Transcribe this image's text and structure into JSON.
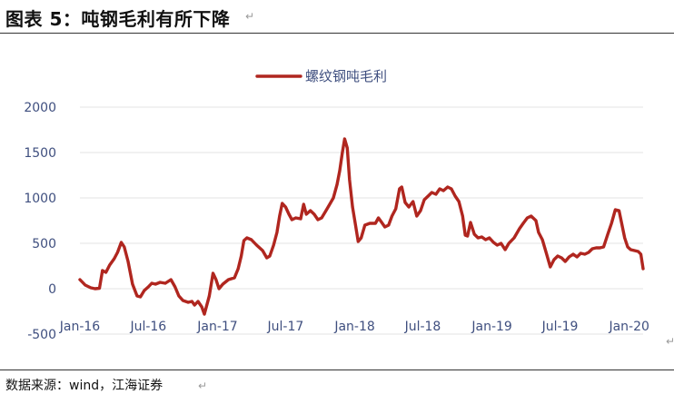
{
  "figure_title": "图表 5：吨钢毛利有所下降",
  "source_note": "数据来源：wind，江海证券",
  "colors": {
    "series": "#b0261f",
    "axis_text": "#3f4f7f",
    "grid": "#e3e3e3",
    "title_text": "#111111"
  },
  "chart_data": {
    "type": "line",
    "title": "",
    "xlabel": "",
    "ylabel": "",
    "legend_position": "top-center",
    "grid": true,
    "ylim": [
      -500,
      2000
    ],
    "yticks": [
      -500,
      0,
      500,
      1000,
      1500,
      2000
    ],
    "xlim": [
      "2016-01-01",
      "2020-02-07"
    ],
    "xticks": [
      {
        "date": "2016-01-01",
        "label": "Jan-16"
      },
      {
        "date": "2016-07-01",
        "label": "Jul-16"
      },
      {
        "date": "2017-01-01",
        "label": "Jan-17"
      },
      {
        "date": "2017-07-01",
        "label": "Jul-17"
      },
      {
        "date": "2018-01-01",
        "label": "Jan-18"
      },
      {
        "date": "2018-07-01",
        "label": "Jul-18"
      },
      {
        "date": "2019-01-01",
        "label": "Jan-19"
      },
      {
        "date": "2019-07-01",
        "label": "Jul-19"
      },
      {
        "date": "2020-01-01",
        "label": "Jan-20"
      }
    ],
    "series": [
      {
        "name": "螺纹钢吨毛利",
        "points": [
          [
            "2016-01-01",
            100
          ],
          [
            "2016-01-15",
            40
          ],
          [
            "2016-01-30",
            10
          ],
          [
            "2016-02-10",
            0
          ],
          [
            "2016-02-22",
            5
          ],
          [
            "2016-03-01",
            200
          ],
          [
            "2016-03-10",
            180
          ],
          [
            "2016-03-20",
            260
          ],
          [
            "2016-04-01",
            330
          ],
          [
            "2016-04-10",
            400
          ],
          [
            "2016-04-20",
            510
          ],
          [
            "2016-04-28",
            460
          ],
          [
            "2016-05-08",
            300
          ],
          [
            "2016-05-20",
            50
          ],
          [
            "2016-06-01",
            -80
          ],
          [
            "2016-06-10",
            -90
          ],
          [
            "2016-06-20",
            -20
          ],
          [
            "2016-07-01",
            20
          ],
          [
            "2016-07-10",
            60
          ],
          [
            "2016-07-20",
            50
          ],
          [
            "2016-08-01",
            70
          ],
          [
            "2016-08-15",
            60
          ],
          [
            "2016-08-30",
            100
          ],
          [
            "2016-09-10",
            20
          ],
          [
            "2016-09-20",
            -80
          ],
          [
            "2016-10-01",
            -130
          ],
          [
            "2016-10-15",
            -150
          ],
          [
            "2016-10-25",
            -140
          ],
          [
            "2016-11-01",
            -180
          ],
          [
            "2016-11-10",
            -140
          ],
          [
            "2016-11-20",
            -200
          ],
          [
            "2016-11-27",
            -280
          ],
          [
            "2016-12-10",
            -80
          ],
          [
            "2016-12-20",
            170
          ],
          [
            "2016-12-28",
            100
          ],
          [
            "2017-01-05",
            0
          ],
          [
            "2017-01-15",
            50
          ],
          [
            "2017-01-30",
            100
          ],
          [
            "2017-02-15",
            120
          ],
          [
            "2017-02-25",
            220
          ],
          [
            "2017-03-05",
            360
          ],
          [
            "2017-03-12",
            530
          ],
          [
            "2017-03-20",
            560
          ],
          [
            "2017-04-01",
            540
          ],
          [
            "2017-04-15",
            480
          ],
          [
            "2017-05-01",
            420
          ],
          [
            "2017-05-12",
            340
          ],
          [
            "2017-05-20",
            360
          ],
          [
            "2017-05-30",
            480
          ],
          [
            "2017-06-08",
            620
          ],
          [
            "2017-06-15",
            800
          ],
          [
            "2017-06-22",
            940
          ],
          [
            "2017-07-01",
            900
          ],
          [
            "2017-07-10",
            820
          ],
          [
            "2017-07-18",
            760
          ],
          [
            "2017-07-28",
            780
          ],
          [
            "2017-08-10",
            770
          ],
          [
            "2017-08-18",
            930
          ],
          [
            "2017-08-25",
            820
          ],
          [
            "2017-09-05",
            860
          ],
          [
            "2017-09-15",
            820
          ],
          [
            "2017-09-25",
            760
          ],
          [
            "2017-10-05",
            780
          ],
          [
            "2017-10-15",
            850
          ],
          [
            "2017-10-25",
            920
          ],
          [
            "2017-11-05",
            1000
          ],
          [
            "2017-11-15",
            1150
          ],
          [
            "2017-11-22",
            1300
          ],
          [
            "2017-11-29",
            1500
          ],
          [
            "2017-12-05",
            1650
          ],
          [
            "2017-12-12",
            1550
          ],
          [
            "2017-12-18",
            1200
          ],
          [
            "2017-12-26",
            900
          ],
          [
            "2018-01-03",
            700
          ],
          [
            "2018-01-10",
            520
          ],
          [
            "2018-01-18",
            560
          ],
          [
            "2018-01-28",
            700
          ],
          [
            "2018-02-10",
            720
          ],
          [
            "2018-02-25",
            720
          ],
          [
            "2018-03-05",
            780
          ],
          [
            "2018-03-12",
            740
          ],
          [
            "2018-03-22",
            680
          ],
          [
            "2018-04-01",
            700
          ],
          [
            "2018-04-10",
            800
          ],
          [
            "2018-04-20",
            880
          ],
          [
            "2018-04-30",
            1100
          ],
          [
            "2018-05-06",
            1120
          ],
          [
            "2018-05-15",
            950
          ],
          [
            "2018-05-25",
            900
          ],
          [
            "2018-06-05",
            960
          ],
          [
            "2018-06-15",
            800
          ],
          [
            "2018-06-25",
            860
          ],
          [
            "2018-07-05",
            980
          ],
          [
            "2018-07-15",
            1020
          ],
          [
            "2018-07-25",
            1060
          ],
          [
            "2018-08-05",
            1040
          ],
          [
            "2018-08-15",
            1100
          ],
          [
            "2018-08-25",
            1080
          ],
          [
            "2018-09-05",
            1120
          ],
          [
            "2018-09-15",
            1100
          ],
          [
            "2018-09-25",
            1020
          ],
          [
            "2018-10-05",
            960
          ],
          [
            "2018-10-15",
            800
          ],
          [
            "2018-10-22",
            590
          ],
          [
            "2018-10-28",
            580
          ],
          [
            "2018-11-05",
            730
          ],
          [
            "2018-11-15",
            600
          ],
          [
            "2018-11-25",
            560
          ],
          [
            "2018-12-05",
            570
          ],
          [
            "2018-12-15",
            540
          ],
          [
            "2018-12-25",
            560
          ],
          [
            "2019-01-05",
            510
          ],
          [
            "2019-01-15",
            480
          ],
          [
            "2019-01-25",
            500
          ],
          [
            "2019-02-05",
            430
          ],
          [
            "2019-02-15",
            500
          ],
          [
            "2019-03-01",
            560
          ],
          [
            "2019-03-15",
            660
          ],
          [
            "2019-03-25",
            720
          ],
          [
            "2019-04-05",
            780
          ],
          [
            "2019-04-15",
            800
          ],
          [
            "2019-04-28",
            750
          ],
          [
            "2019-05-05",
            620
          ],
          [
            "2019-05-15",
            540
          ],
          [
            "2019-05-25",
            400
          ],
          [
            "2019-06-05",
            240
          ],
          [
            "2019-06-15",
            320
          ],
          [
            "2019-06-25",
            360
          ],
          [
            "2019-07-05",
            340
          ],
          [
            "2019-07-15",
            300
          ],
          [
            "2019-07-25",
            350
          ],
          [
            "2019-08-05",
            380
          ],
          [
            "2019-08-15",
            350
          ],
          [
            "2019-08-25",
            390
          ],
          [
            "2019-09-05",
            380
          ],
          [
            "2019-09-15",
            400
          ],
          [
            "2019-09-25",
            440
          ],
          [
            "2019-10-05",
            450
          ],
          [
            "2019-10-15",
            450
          ],
          [
            "2019-10-25",
            460
          ],
          [
            "2019-11-05",
            600
          ],
          [
            "2019-11-15",
            720
          ],
          [
            "2019-11-25",
            870
          ],
          [
            "2019-12-05",
            860
          ],
          [
            "2019-12-12",
            720
          ],
          [
            "2019-12-20",
            560
          ],
          [
            "2019-12-28",
            460
          ],
          [
            "2020-01-05",
            430
          ],
          [
            "2020-01-15",
            420
          ],
          [
            "2020-01-25",
            410
          ],
          [
            "2020-02-01",
            380
          ],
          [
            "2020-02-07",
            220
          ]
        ]
      }
    ]
  }
}
